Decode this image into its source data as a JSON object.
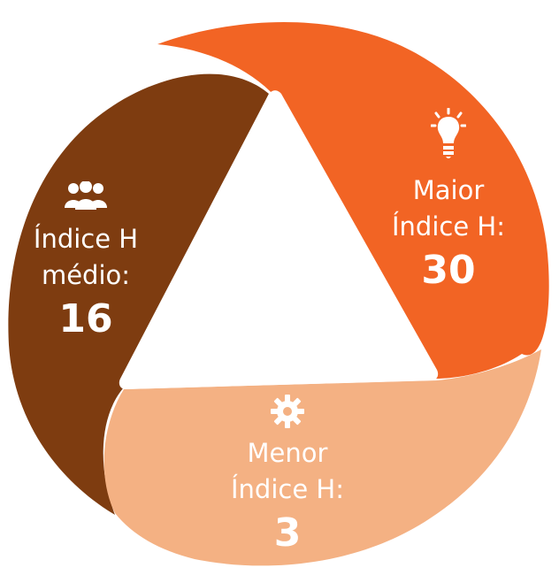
{
  "diagram": {
    "segments": [
      {
        "id": "medio",
        "line1": "Índice H",
        "line2": "médio:",
        "value": "16",
        "color": "#7e3c10",
        "icon": "people-icon"
      },
      {
        "id": "maior",
        "line1": "Maior",
        "line2": "Índice H:",
        "value": "30",
        "color": "#f26424",
        "icon": "lightbulb-icon"
      },
      {
        "id": "menor",
        "line1": "Menor",
        "line2": "Índice H:",
        "value": "3",
        "color": "#f4b183",
        "icon": "gear-icon"
      }
    ]
  }
}
